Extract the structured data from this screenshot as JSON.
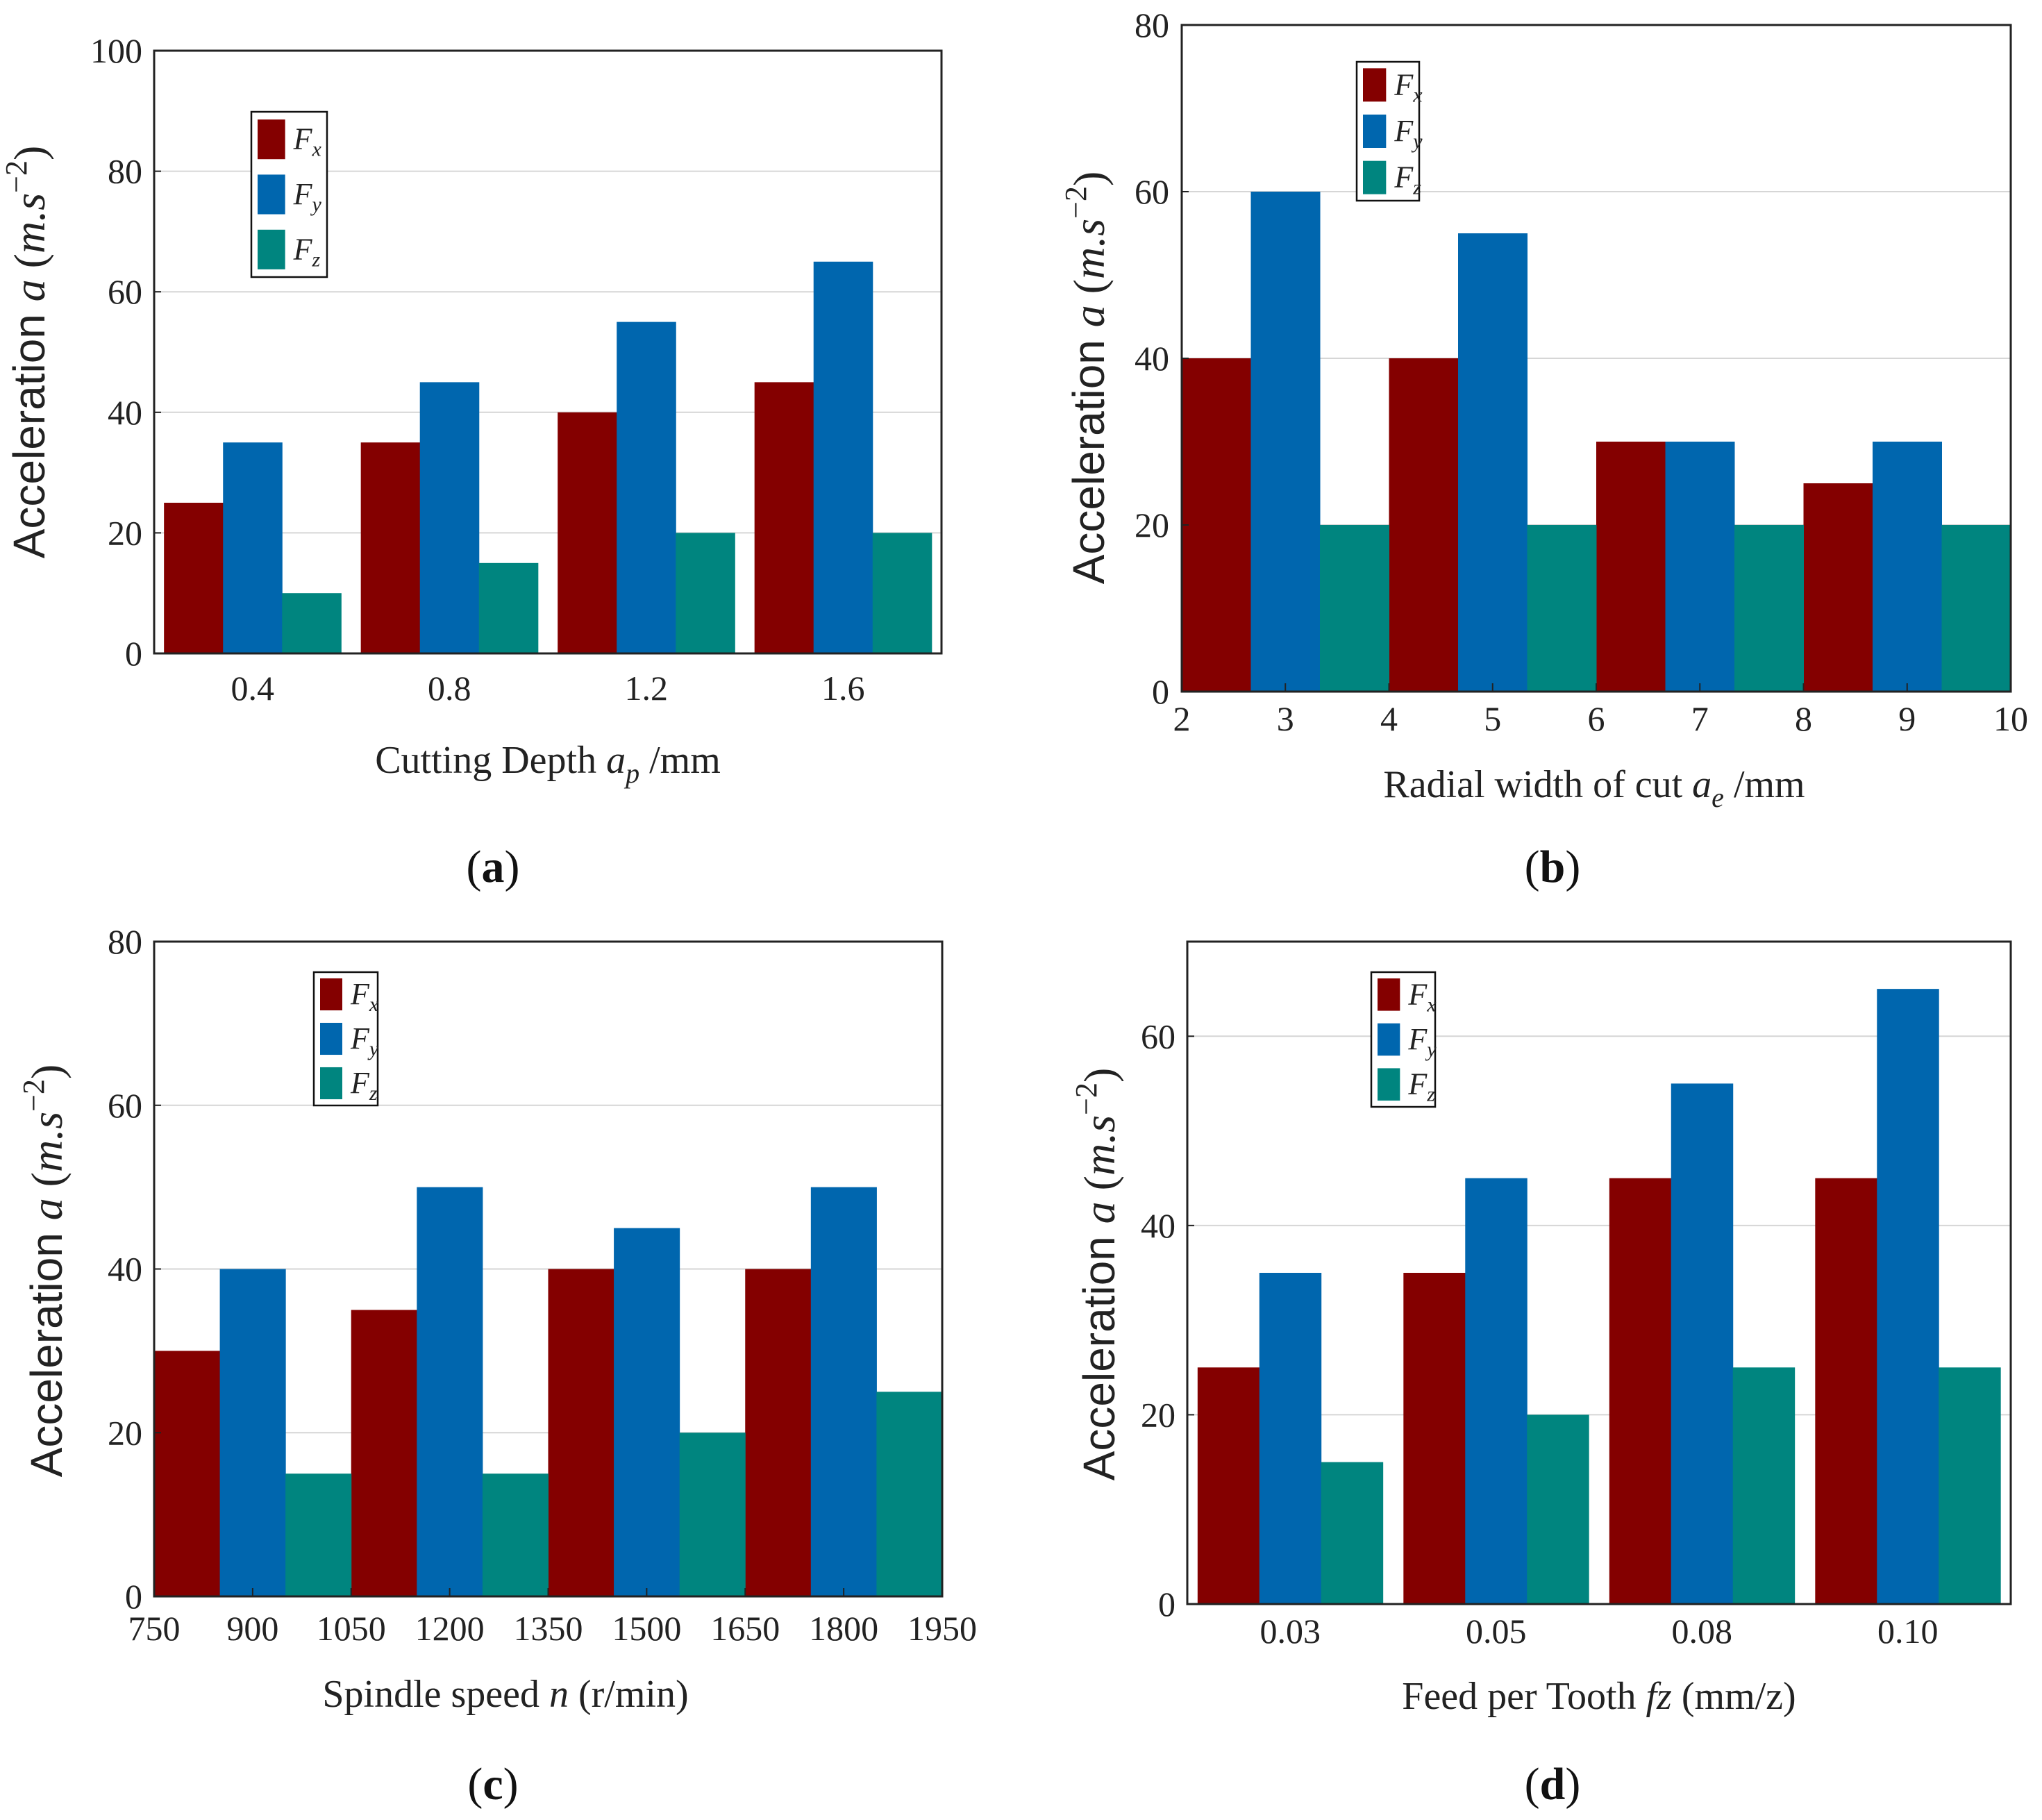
{
  "colors": {
    "Fx": "#840000",
    "Fy": "#0066ae",
    "Fz": "#00857f",
    "grid": "#d6d6d6",
    "axis": "#222222"
  },
  "chart_data": [
    {
      "id": "a",
      "type": "bar",
      "panel_label": {
        "open": "(",
        "letter": "a",
        "close": ")"
      },
      "title": "",
      "ylabel": {
        "text": "Acceleration ",
        "var": "a",
        "unit_open": " (",
        "unit_m": "m.s",
        "unit_exp": "−2",
        "unit_close": ")"
      },
      "xlabel": {
        "text": "Cutting Depth ",
        "var": "a",
        "sub": "p",
        "unit": " /mm"
      },
      "ylim": [
        0,
        100
      ],
      "yticks": [
        "0",
        "20",
        "40",
        "60",
        "80",
        "100"
      ],
      "grid": true,
      "legend_position": "upper-left",
      "categories": [
        "0.4",
        "0.8",
        "1.2",
        "1.6"
      ],
      "series": [
        {
          "name": "Fx",
          "label_main": "F",
          "label_sub": "x",
          "values": [
            25,
            35,
            40,
            45
          ]
        },
        {
          "name": "Fy",
          "label_main": "F",
          "label_sub": "y",
          "values": [
            35,
            45,
            55,
            65
          ]
        },
        {
          "name": "Fz",
          "label_main": "F",
          "label_sub": "z",
          "values": [
            10,
            15,
            20,
            20
          ]
        }
      ]
    },
    {
      "id": "b",
      "type": "bar",
      "panel_label": {
        "open": "(",
        "letter": "b",
        "close": ")"
      },
      "title": "",
      "ylabel": {
        "text": "Acceleration ",
        "var": "a",
        "unit_open": " (",
        "unit_m": "m.s",
        "unit_exp": "−2",
        "unit_close": ")"
      },
      "xlabel": {
        "text": "Radial width of cut ",
        "var": "a",
        "sub": "e",
        "unit": " /mm"
      },
      "ylim": [
        0,
        80
      ],
      "yticks": [
        "0",
        "20",
        "40",
        "60",
        "80"
      ],
      "grid": true,
      "legend_position": "upper-left",
      "xticks": [
        "2",
        "3",
        "4",
        "5",
        "6",
        "7",
        "8",
        "9",
        "10"
      ],
      "categories": [
        "3",
        "5",
        "7",
        "9"
      ],
      "series": [
        {
          "name": "Fx",
          "label_main": "F",
          "label_sub": "x",
          "values": [
            40,
            40,
            30,
            25
          ]
        },
        {
          "name": "Fy",
          "label_main": "F",
          "label_sub": "y",
          "values": [
            60,
            55,
            30,
            30
          ]
        },
        {
          "name": "Fz",
          "label_main": "F",
          "label_sub": "z",
          "values": [
            20,
            20,
            20,
            20
          ]
        }
      ]
    },
    {
      "id": "c",
      "type": "bar",
      "panel_label": {
        "open": "(",
        "letter": "c",
        "close": ")"
      },
      "title": "",
      "ylabel": {
        "text": "Acceleration ",
        "var": "a",
        "unit_open": " (",
        "unit_m": "m.s",
        "unit_exp": "−2",
        "unit_close": ")"
      },
      "xlabel": {
        "text": "Spindle speed ",
        "var": "n",
        "sub": "",
        "unit": " (r/min)"
      },
      "ylim": [
        0,
        80
      ],
      "yticks": [
        "0",
        "20",
        "40",
        "60",
        "80"
      ],
      "grid": true,
      "legend_position": "upper-center",
      "xticks": [
        "750",
        "900",
        "1050",
        "1200",
        "1350",
        "1500",
        "1650",
        "1800",
        "1950"
      ],
      "categories": [
        "900",
        "1200",
        "1500",
        "1800"
      ],
      "series": [
        {
          "name": "Fx",
          "label_main": "F",
          "label_sub": "x",
          "values": [
            30,
            35,
            40,
            40
          ]
        },
        {
          "name": "Fy",
          "label_main": "F",
          "label_sub": "y",
          "values": [
            40,
            50,
            45,
            50
          ]
        },
        {
          "name": "Fz",
          "label_main": "F",
          "label_sub": "z",
          "values": [
            15,
            15,
            20,
            25
          ]
        }
      ]
    },
    {
      "id": "d",
      "type": "bar",
      "panel_label": {
        "open": "(",
        "letter": "d",
        "close": ")"
      },
      "title": "",
      "ylabel": {
        "text": "Acceleration ",
        "var": "a",
        "unit_open": " (",
        "unit_m": "m.s",
        "unit_exp": "−2",
        "unit_close": ")"
      },
      "xlabel": {
        "text": "Feed per Tooth ",
        "var": "fz",
        "sub": "",
        "unit": " (mm/z)"
      },
      "ylim": [
        0,
        70
      ],
      "yticks": [
        "0",
        "20",
        "40",
        "60"
      ],
      "grid": true,
      "legend_position": "upper-left",
      "categories": [
        "0.03",
        "0.05",
        "0.08",
        "0.10"
      ],
      "series": [
        {
          "name": "Fx",
          "label_main": "F",
          "label_sub": "x",
          "values": [
            25,
            35,
            45,
            45
          ]
        },
        {
          "name": "Fy",
          "label_main": "F",
          "label_sub": "y",
          "values": [
            35,
            45,
            55,
            65
          ]
        },
        {
          "name": "Fz",
          "label_main": "F",
          "label_sub": "z",
          "values": [
            15,
            20,
            25,
            25
          ]
        }
      ]
    }
  ]
}
